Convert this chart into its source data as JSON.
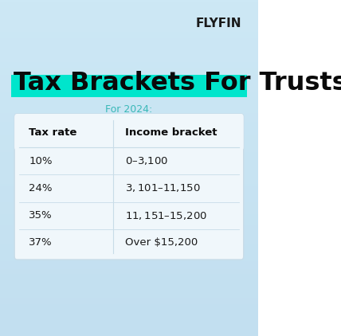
{
  "title": "Tax Brackets For Trusts",
  "subtitle": "For 2024:",
  "logo": "FLYFIN",
  "col_headers": [
    "Tax rate",
    "Income bracket"
  ],
  "rows": [
    [
      "10%",
      "$0 – $3,100"
    ],
    [
      "24%",
      "$3,101 – $11,150"
    ],
    [
      "35%",
      "$11,151 – $15,200"
    ],
    [
      "37%",
      "Over $15,200"
    ]
  ],
  "bg_color_top": "#c8eef5",
  "bg_color_bottom": "#dce8f5",
  "bg_gradient_start": "#cceef8",
  "bg_gradient_end": "#d0e5f5",
  "title_color": "#0a0a0a",
  "title_highlight_color": "#00e5cc",
  "subtitle_color": "#3ab8b8",
  "logo_color": "#1a1a1a",
  "table_bg": "#f0f7fb",
  "table_border": "#c8dce8",
  "header_text_color": "#0a0a0a",
  "row_text_color": "#1a1a1a",
  "divider_color": "#c8dce8",
  "col_divider_color": "#c8dce8"
}
